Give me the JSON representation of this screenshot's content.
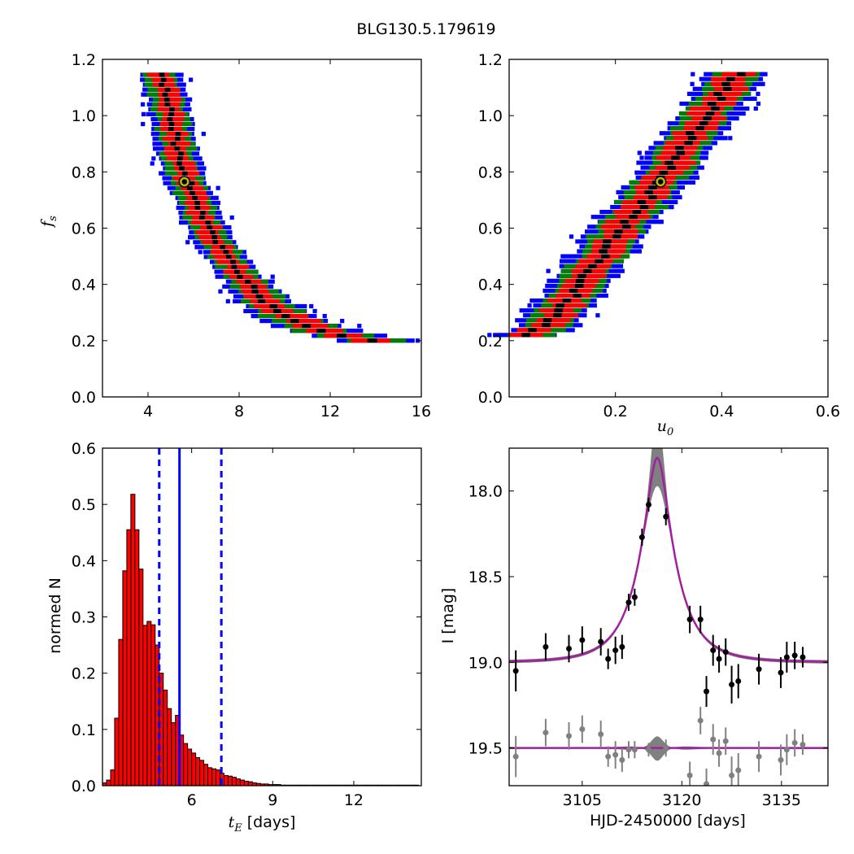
{
  "figure": {
    "title": "BLG130.5.179619"
  },
  "chart_data": [
    {
      "id": "fs_vs_tE",
      "type": "heatmap",
      "xlabel": "",
      "ylabel": "f_s",
      "xlim": [
        2,
        16
      ],
      "ylim": [
        0,
        1.2
      ],
      "xticks": [
        4,
        8,
        12,
        16
      ],
      "yticks": [
        0.0,
        0.2,
        0.4,
        0.6,
        0.8,
        1.0,
        1.2
      ],
      "ytick_labels": [
        "0.0",
        "0.2",
        "0.4",
        "0.6",
        "0.8",
        "1.0",
        "1.2"
      ],
      "levels": [
        "blue",
        "green",
        "red",
        "black"
      ],
      "colors": {
        "blue": "#0000ff",
        "green": "#007f00",
        "red": "#ff0000",
        "black": "#000000"
      },
      "ridge": [
        [
          4.6,
          1.15
        ],
        [
          5.0,
          1.0
        ],
        [
          5.4,
          0.85
        ],
        [
          5.8,
          0.75
        ],
        [
          6.3,
          0.65
        ],
        [
          7.0,
          0.55
        ],
        [
          8.0,
          0.44
        ],
        [
          9.0,
          0.35
        ],
        [
          10.0,
          0.29
        ],
        [
          11.5,
          0.24
        ],
        [
          13.0,
          0.21
        ],
        [
          14.0,
          0.2
        ]
      ],
      "best_fit": {
        "x": 5.6,
        "y": 0.765
      }
    },
    {
      "id": "fs_vs_u0",
      "type": "heatmap",
      "xlabel": "u_0",
      "ylabel": "",
      "xlim": [
        0.0,
        0.6
      ],
      "ylim": [
        0,
        1.2
      ],
      "xticks": [
        0.2,
        0.4,
        0.6
      ],
      "yticks": [
        0.0,
        0.2,
        0.4,
        0.6,
        0.8,
        1.0,
        1.2
      ],
      "ytick_labels": [
        "0.0",
        "0.2",
        "0.4",
        "0.6",
        "0.8",
        "1.0",
        "1.2"
      ],
      "levels": [
        "blue",
        "green",
        "red",
        "black"
      ],
      "ridge": [
        [
          0.04,
          0.22
        ],
        [
          0.08,
          0.27
        ],
        [
          0.12,
          0.36
        ],
        [
          0.16,
          0.47
        ],
        [
          0.2,
          0.57
        ],
        [
          0.24,
          0.66
        ],
        [
          0.28,
          0.76
        ],
        [
          0.32,
          0.86
        ],
        [
          0.36,
          0.97
        ],
        [
          0.4,
          1.07
        ],
        [
          0.43,
          1.15
        ]
      ],
      "best_fit": {
        "x": 0.285,
        "y": 0.765
      }
    },
    {
      "id": "tE_histogram",
      "type": "bar",
      "xlabel": "[days]",
      "xlabel_symbol": "t_E",
      "ylabel": "normed N",
      "xlim": [
        2.7,
        14.5
      ],
      "ylim": [
        0,
        0.6
      ],
      "xticks": [
        6,
        9,
        12
      ],
      "yticks": [
        0.0,
        0.1,
        0.2,
        0.3,
        0.4,
        0.5,
        0.6
      ],
      "ytick_labels": [
        "0.0",
        "0.1",
        "0.2",
        "0.3",
        "0.4",
        "0.5",
        "0.6"
      ],
      "bin_width": 0.15,
      "bin_start": 2.7,
      "values": [
        0.005,
        0.01,
        0.028,
        0.12,
        0.26,
        0.382,
        0.455,
        0.518,
        0.455,
        0.385,
        0.285,
        0.292,
        0.286,
        0.25,
        0.2,
        0.17,
        0.137,
        0.112,
        0.125,
        0.09,
        0.075,
        0.065,
        0.058,
        0.05,
        0.045,
        0.038,
        0.032,
        0.03,
        0.028,
        0.022,
        0.018,
        0.017,
        0.015,
        0.012,
        0.01,
        0.008,
        0.007,
        0.005,
        0.004,
        0.003,
        0.003,
        0.002,
        0.002,
        0.002,
        0.001,
        0.001,
        0.001,
        0.001,
        0.001,
        0.001,
        0.001,
        0.001,
        0.001,
        0.001,
        0.001,
        0.001,
        0.001,
        0.001,
        0.001,
        0.001,
        0.001,
        0.001,
        0.001,
        0.001,
        0.001,
        0.001,
        0.001,
        0.001,
        0.001,
        0.001,
        0.001,
        0.001,
        0.001,
        0.001,
        0.001,
        0.001,
        0.001,
        0.001
      ],
      "median": 5.55,
      "lower": 4.8,
      "upper": 7.1,
      "bar_color": "#ff0000"
    },
    {
      "id": "light_curve",
      "type": "scatter",
      "xlabel": "HJD-2450000 [days]",
      "ylabel": "I [mag]",
      "xlim": [
        3094,
        3142
      ],
      "ylim": [
        19.72,
        17.75
      ],
      "xticks": [
        3105,
        3120,
        3135
      ],
      "yticks": [
        18.0,
        18.5,
        19.0,
        19.5
      ],
      "ytick_labels": [
        "18.0",
        "18.5",
        "19.0",
        "19.5"
      ],
      "model": {
        "t0": 3116.3,
        "tE": 5.6,
        "u0": 0.285,
        "fs": 0.765,
        "baseline": 19.0
      },
      "data": [
        [
          3095.0,
          19.05,
          0.12
        ],
        [
          3099.5,
          18.91,
          0.08
        ],
        [
          3103.0,
          18.92,
          0.08
        ],
        [
          3105.0,
          18.87,
          0.08
        ],
        [
          3107.8,
          18.88,
          0.08
        ],
        [
          3108.9,
          18.98,
          0.06
        ],
        [
          3110.0,
          18.93,
          0.08
        ],
        [
          3111.0,
          18.91,
          0.07
        ],
        [
          3112.0,
          18.65,
          0.05
        ],
        [
          3112.9,
          18.62,
          0.05
        ],
        [
          3114.0,
          18.27,
          0.05
        ],
        [
          3115.0,
          18.08,
          0.04
        ],
        [
          3117.6,
          18.15,
          0.05
        ],
        [
          3121.2,
          18.75,
          0.08
        ],
        [
          3122.8,
          18.75,
          0.08
        ],
        [
          3123.7,
          19.17,
          0.09
        ],
        [
          3124.7,
          18.93,
          0.09
        ],
        [
          3125.6,
          18.98,
          0.08
        ],
        [
          3126.6,
          18.94,
          0.08
        ],
        [
          3127.5,
          19.13,
          0.11
        ],
        [
          3128.5,
          19.11,
          0.1
        ],
        [
          3131.6,
          19.04,
          0.09
        ],
        [
          3134.9,
          19.06,
          0.09
        ],
        [
          3135.8,
          18.97,
          0.09
        ],
        [
          3137.0,
          18.96,
          0.08
        ],
        [
          3138.2,
          18.97,
          0.06
        ]
      ],
      "residual_offset": 19.5,
      "residuals": [
        [
          3095.0,
          0.05,
          0.12
        ],
        [
          3099.5,
          -0.09,
          0.08
        ],
        [
          3103.0,
          -0.07,
          0.08
        ],
        [
          3105.0,
          -0.11,
          0.08
        ],
        [
          3107.8,
          -0.08,
          0.08
        ],
        [
          3108.9,
          0.05,
          0.06
        ],
        [
          3110.0,
          0.04,
          0.08
        ],
        [
          3111.0,
          0.07,
          0.07
        ],
        [
          3112.0,
          0.01,
          0.05
        ],
        [
          3112.9,
          0.01,
          0.05
        ],
        [
          3115.0,
          0.01,
          0.04
        ],
        [
          3117.6,
          0.0,
          0.05
        ],
        [
          3121.2,
          0.16,
          0.08
        ],
        [
          3122.8,
          -0.16,
          0.08
        ],
        [
          3123.7,
          0.21,
          0.09
        ],
        [
          3124.7,
          -0.05,
          0.09
        ],
        [
          3125.6,
          0.03,
          0.08
        ],
        [
          3126.6,
          -0.04,
          0.08
        ],
        [
          3127.5,
          0.16,
          0.11
        ],
        [
          3128.5,
          0.13,
          0.1
        ],
        [
          3131.6,
          0.05,
          0.09
        ],
        [
          3134.9,
          0.07,
          0.09
        ],
        [
          3135.8,
          0.01,
          0.09
        ],
        [
          3137.0,
          -0.03,
          0.08
        ],
        [
          3138.2,
          -0.02,
          0.06
        ]
      ],
      "model_color": "#a020a0",
      "band_color": "#808080"
    }
  ]
}
